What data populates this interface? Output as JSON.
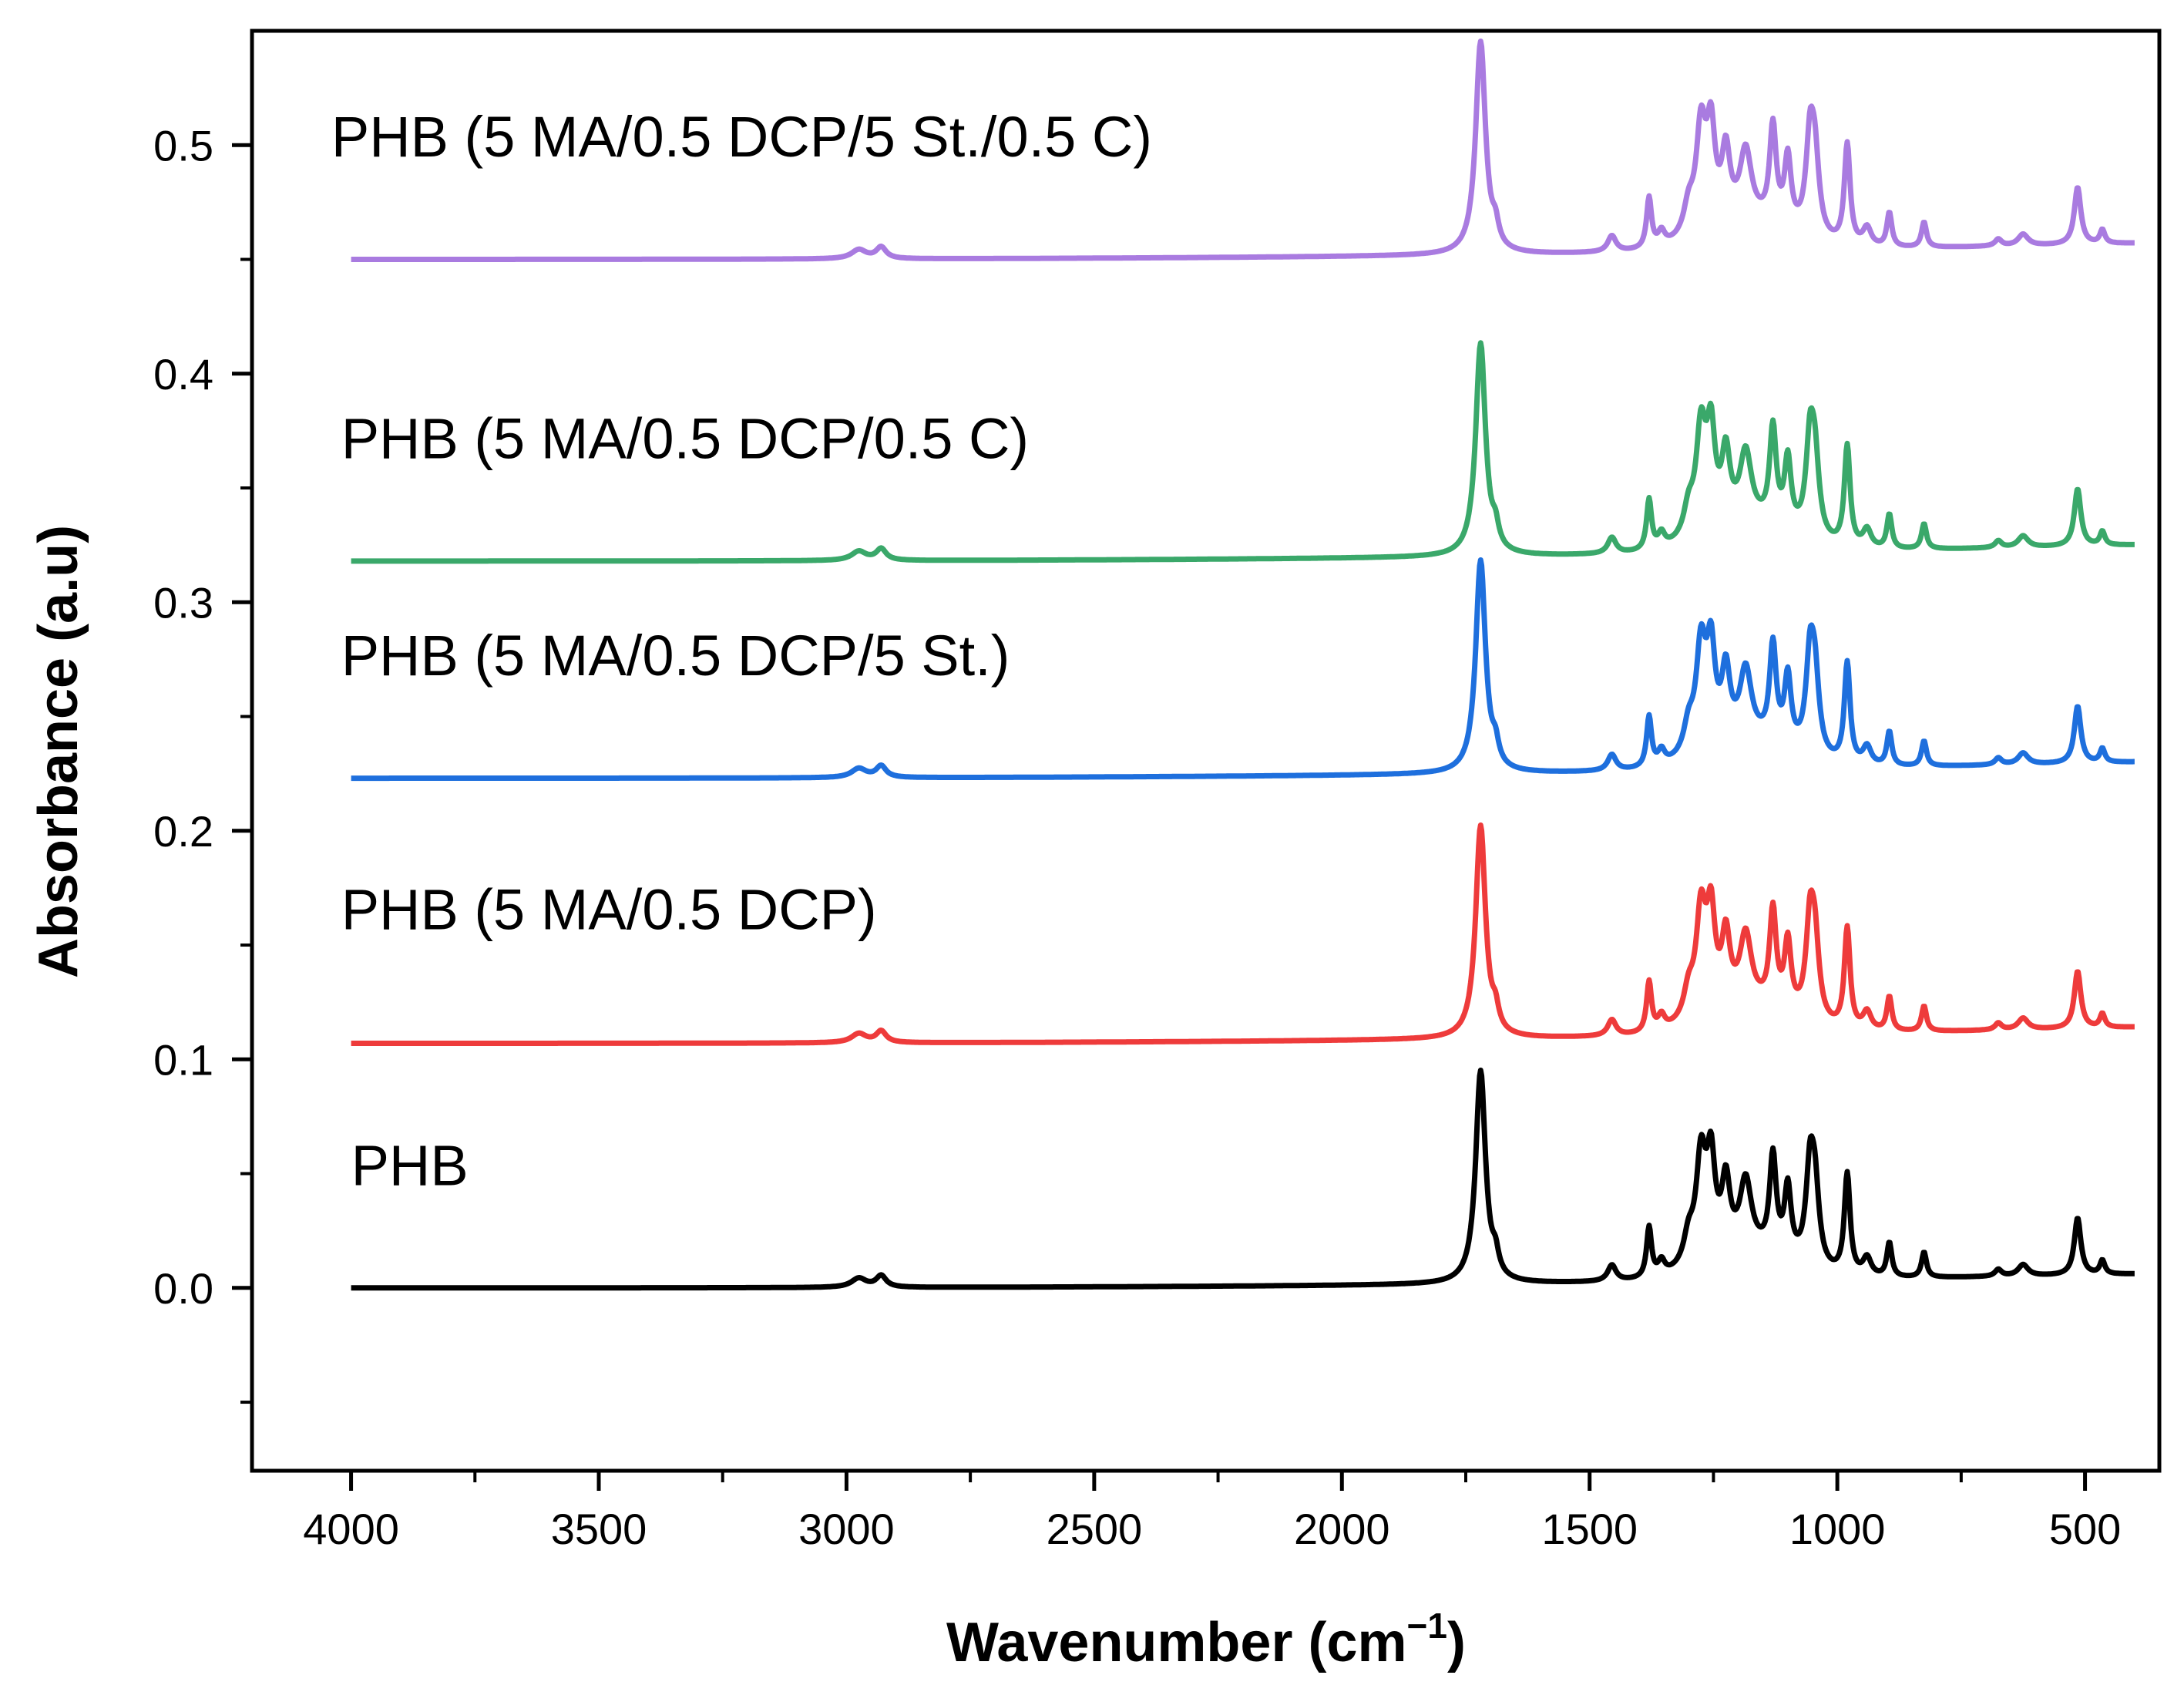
{
  "chart_data": {
    "type": "line",
    "title": "",
    "xlabel": "Wavenumber (cm",
    "xlabel_sup": "−1",
    "xlabel_close": ")",
    "ylabel": "Absorbance (a.u)",
    "xlim": [
      4200,
      350
    ],
    "ylim": [
      -0.08,
      0.55
    ],
    "x_ticks": [
      4000,
      3500,
      3000,
      2500,
      2000,
      1500,
      1000,
      500
    ],
    "x_tick_labels": [
      "4000",
      "3500",
      "3000",
      "2500",
      "2000",
      "1500",
      "1000",
      "500"
    ],
    "y_ticks": [
      0.0,
      0.1,
      0.2,
      0.3,
      0.4,
      0.5
    ],
    "y_tick_labels": [
      "0.0",
      "0.1",
      "0.2",
      "0.3",
      "0.4",
      "0.5"
    ],
    "x_range": [
      4000,
      400
    ],
    "peaks": [
      {
        "x": 2975,
        "w": 18,
        "h": 0.004
      },
      {
        "x": 2930,
        "w": 12,
        "h": 0.005
      },
      {
        "x": 1720,
        "w": 12,
        "h": 0.093
      },
      {
        "x": 1690,
        "w": 8,
        "h": 0.008
      },
      {
        "x": 1455,
        "w": 10,
        "h": 0.007
      },
      {
        "x": 1380,
        "w": 6,
        "h": 0.022
      },
      {
        "x": 1355,
        "w": 8,
        "h": 0.006
      },
      {
        "x": 1300,
        "w": 12,
        "h": 0.012
      },
      {
        "x": 1275,
        "w": 12,
        "h": 0.045
      },
      {
        "x": 1255,
        "w": 10,
        "h": 0.04
      },
      {
        "x": 1225,
        "w": 10,
        "h": 0.03
      },
      {
        "x": 1185,
        "w": 14,
        "h": 0.03
      },
      {
        "x": 1130,
        "w": 8,
        "h": 0.042
      },
      {
        "x": 1100,
        "w": 8,
        "h": 0.03
      },
      {
        "x": 1055,
        "w": 10,
        "h": 0.04
      },
      {
        "x": 1045,
        "w": 10,
        "h": 0.03
      },
      {
        "x": 980,
        "w": 7,
        "h": 0.044
      },
      {
        "x": 940,
        "w": 10,
        "h": 0.008
      },
      {
        "x": 895,
        "w": 6,
        "h": 0.015
      },
      {
        "x": 825,
        "w": 6,
        "h": 0.011
      },
      {
        "x": 675,
        "w": 8,
        "h": 0.003
      },
      {
        "x": 625,
        "w": 12,
        "h": 0.005
      },
      {
        "x": 515,
        "w": 8,
        "h": 0.025
      },
      {
        "x": 465,
        "w": 6,
        "h": 0.006
      }
    ],
    "series": [
      {
        "name": "PHB",
        "label": "PHB",
        "color": "#000000",
        "offset": 0.0,
        "end_offset": 0.006,
        "label_x": 4000,
        "label_y": 0.045
      },
      {
        "name": "PHB (5 MA/0.5 DCP)",
        "label": "PHB (5 MA/0.5 DCP)",
        "color": "#ee3b3b",
        "offset": 0.107,
        "end_offset": 0.114,
        "label_x": 4020,
        "label_y": 0.157
      },
      {
        "name": "PHB (5 MA/0.5 DCP/5 St.)",
        "label": "PHB (5 MA/0.5 DCP/5 St.)",
        "color": "#1e6fdd",
        "offset": 0.223,
        "end_offset": 0.23,
        "label_x": 4020,
        "label_y": 0.268
      },
      {
        "name": "PHB (5 MA/0.5 DCP/0.5 C)",
        "label": "PHB (5 MA/0.5 DCP/0.5 C)",
        "color": "#3aa86a",
        "offset": 0.318,
        "end_offset": 0.325,
        "label_x": 4020,
        "label_y": 0.363
      },
      {
        "name": "PHB (5 MA/0.5 DCP/5 St./0.5 C)",
        "label": "PHB (5 MA/0.5 DCP/5 St./0.5 C)",
        "color": "#a97be0",
        "offset": 0.45,
        "end_offset": 0.457,
        "label_x": 4040,
        "label_y": 0.495
      }
    ]
  }
}
